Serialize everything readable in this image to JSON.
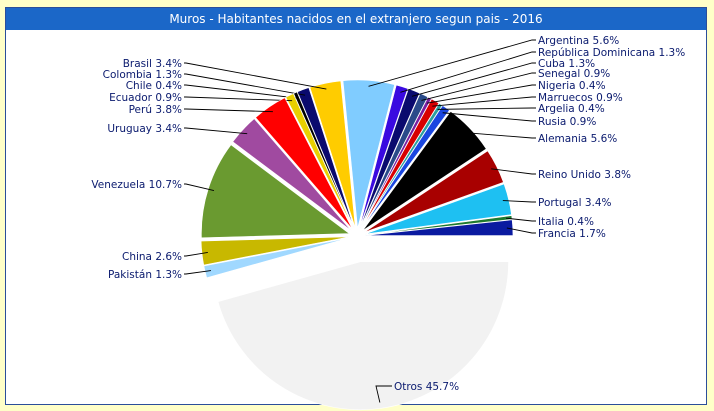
{
  "colors": {
    "background": "#ffffc8",
    "title_bar": "#1b67c8",
    "title_text": "#ffffff",
    "label_text": "#0a1a6e",
    "leader_line": "#000000"
  },
  "chart_data": {
    "type": "pie",
    "title": "Muros - Habitantes nacidos en el extranjero segun pais - 2016",
    "exploded": true,
    "slices": [
      {
        "label": "Francia 1.7%",
        "name": "Francia",
        "value": 1.7,
        "color": "#0a1aa0",
        "side": "right"
      },
      {
        "label": "Italia 0.4%",
        "name": "Italia",
        "value": 0.4,
        "color": "#1e7a2e",
        "side": "right"
      },
      {
        "label": "Portugal 3.4%",
        "name": "Portugal",
        "value": 3.4,
        "color": "#1ec0f2",
        "side": "right"
      },
      {
        "label": "Reino Unido 3.8%",
        "name": "Reino Unido",
        "value": 3.8,
        "color": "#a80000",
        "side": "right"
      },
      {
        "label": "Alemania 5.6%",
        "name": "Alemania",
        "value": 5.6,
        "color": "#000000",
        "side": "right"
      },
      {
        "label": "Rusia 0.9%",
        "name": "Rusia",
        "value": 0.9,
        "color": "#1a46e0",
        "side": "right"
      },
      {
        "label": "Argelia 0.4%",
        "name": "Argelia",
        "value": 0.4,
        "color": "#2aa0a0",
        "side": "right"
      },
      {
        "label": "Marruecos 0.9%",
        "name": "Marruecos",
        "value": 0.9,
        "color": "#d80000",
        "side": "right"
      },
      {
        "label": "Nigeria 0.4%",
        "name": "Nigeria",
        "value": 0.4,
        "color": "#7a1ea0",
        "side": "right"
      },
      {
        "label": "Senegal 0.9%",
        "name": "Senegal",
        "value": 0.9,
        "color": "#2a4a8a",
        "side": "right"
      },
      {
        "label": "Cuba 1.3%",
        "name": "Cuba",
        "value": 1.3,
        "color": "#0a0a6e",
        "side": "right"
      },
      {
        "label": "República Dominicana 1.3%",
        "name": "República Dominicana",
        "value": 1.3,
        "color": "#3a0ae0",
        "side": "right"
      },
      {
        "label": "Argentina 5.6%",
        "name": "Argentina",
        "value": 5.6,
        "color": "#80ccff",
        "side": "right"
      },
      {
        "label": "Brasil 3.4%",
        "name": "Brasil",
        "value": 3.4,
        "color": "#ffcc00",
        "side": "left"
      },
      {
        "label": "Colombia 1.3%",
        "name": "Colombia",
        "value": 1.3,
        "color": "#0a0a6e",
        "side": "left"
      },
      {
        "label": "Chile 0.4%",
        "name": "Chile",
        "value": 0.4,
        "color": "#000000",
        "side": "left"
      },
      {
        "label": "Ecuador 0.9%",
        "name": "Ecuador",
        "value": 0.9,
        "color": "#e8d000",
        "side": "left"
      },
      {
        "label": "Perú 3.8%",
        "name": "Perú",
        "value": 3.8,
        "color": "#ff0000",
        "side": "left"
      },
      {
        "label": "Uruguay 3.4%",
        "name": "Uruguay",
        "value": 3.4,
        "color": "#a04aa0",
        "side": "left"
      },
      {
        "label": "Venezuela 10.7%",
        "name": "Venezuela",
        "value": 10.7,
        "color": "#6a9a30",
        "side": "left"
      },
      {
        "label": "China 2.6%",
        "name": "China",
        "value": 2.6,
        "color": "#c8b800",
        "side": "left"
      },
      {
        "label": "Pakistán 1.3%",
        "name": "Pakistán",
        "value": 1.3,
        "color": "#a0d8ff",
        "side": "left"
      },
      {
        "label": "Otros 45.7%",
        "name": "Otros",
        "value": 45.7,
        "color": "#f2f2f2",
        "side": "bottom"
      }
    ]
  }
}
